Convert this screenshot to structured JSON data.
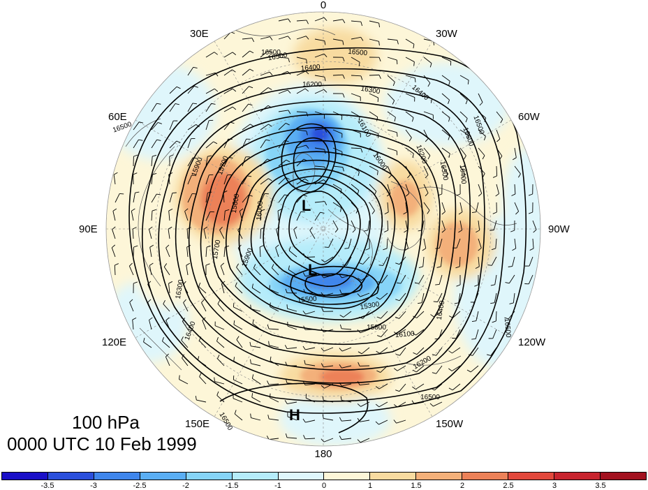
{
  "title": {
    "level": "100 hPa",
    "time": "0000 UTC 10 Feb 1999"
  },
  "longitude_labels": {
    "top": "0",
    "upper_left": "30E",
    "upper_right": "30W",
    "mid_upper_left": "60E",
    "mid_upper_right": "60W",
    "left": "90E",
    "right": "90W",
    "lower_left": "120E",
    "lower_right": "120W",
    "bottom_left": "150E",
    "bottom_right": "150W",
    "bottom": "180"
  },
  "pressure_centers": {
    "low_1": "L",
    "low_2": "L",
    "high_1": "H"
  },
  "contour_labels": [
    "16500",
    "16500",
    "16400",
    "16200",
    "16300",
    "16400",
    "16500",
    "16500",
    "16100",
    "16000",
    "16200",
    "16300",
    "16400",
    "15900",
    "15700",
    "15600",
    "16000",
    "15700",
    "15900",
    "15500",
    "15300",
    "15800",
    "16100",
    "16200",
    "16400",
    "16300",
    "16500",
    "16500",
    "16400",
    "16500",
    "16500",
    "16600"
  ],
  "colorbar": {
    "ticks": [
      "-3.5",
      "-3",
      "-2.5",
      "-2",
      "-1.5",
      "-1",
      "0",
      "1",
      "1.5",
      "2",
      "2.5",
      "3",
      "3.5"
    ],
    "colors": [
      "#1a10c8",
      "#2a4fdc",
      "#3f86ec",
      "#5aaef3",
      "#86d4f7",
      "#b5ecfa",
      "#dff6fb",
      "#fdf6d8",
      "#f8dba0",
      "#f3b07a",
      "#ec8158",
      "#e2483c",
      "#c8242e",
      "#a3111f"
    ]
  },
  "colors": {
    "negative_strong": "#2a4fdc",
    "negative_weak": "#b5ecfa",
    "positive_weak": "#f8dba0",
    "positive_strong": "#ec8158",
    "contour": "#000000"
  }
}
